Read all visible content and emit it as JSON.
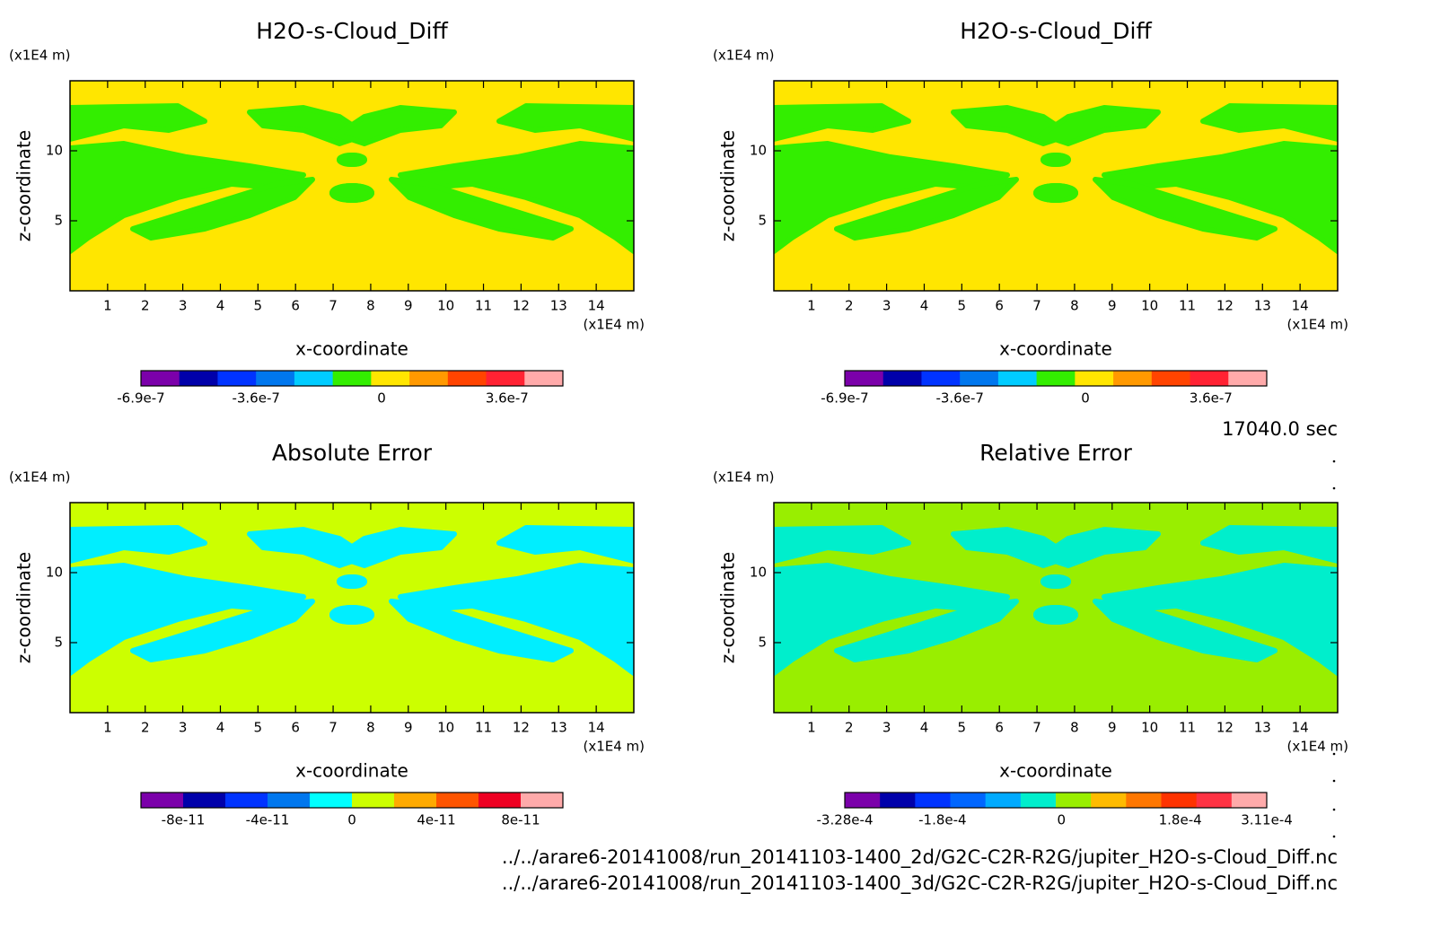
{
  "chart_data": [
    {
      "type": "contour",
      "title": "H2O-s-Cloud_Diff",
      "x_label": "x-coordinate",
      "y_label": "z-coordinate",
      "x_unit": "(x1E4 m)",
      "y_unit": "(x1E4 m)",
      "xlim": [
        0,
        15
      ],
      "ylim": [
        0,
        15
      ],
      "xticks": [
        1,
        2,
        3,
        4,
        5,
        6,
        7,
        8,
        9,
        10,
        11,
        12,
        13,
        14
      ],
      "yticks": [
        5,
        10
      ],
      "field_color": "#ffe600",
      "pattern_color": "#33ee00",
      "colorbar": {
        "clim": [
          -6.9e-07,
          5.2e-07
        ],
        "colors": [
          "#7b00aa",
          "#0000aa",
          "#0033ff",
          "#0077ee",
          "#00ccff",
          "#33ee00",
          "#ffe600",
          "#ff9900",
          "#ff4400",
          "#ff2233",
          "#ffaaaa"
        ],
        "ticks": [
          {
            "value": -6.9e-07,
            "label": "-6.9e-7"
          },
          {
            "value": -3.6e-07,
            "label": "-3.6e-7"
          },
          0,
          {
            "value": 3.6e-07,
            "label": "3.6e-7"
          }
        ]
      }
    },
    {
      "type": "contour",
      "title": "H2O-s-Cloud_Diff",
      "x_label": "x-coordinate",
      "y_label": "z-coordinate",
      "x_unit": "(x1E4 m)",
      "y_unit": "(x1E4 m)",
      "xlim": [
        0,
        15
      ],
      "ylim": [
        0,
        15
      ],
      "xticks": [
        1,
        2,
        3,
        4,
        5,
        6,
        7,
        8,
        9,
        10,
        11,
        12,
        13,
        14
      ],
      "yticks": [
        5,
        10
      ],
      "field_color": "#ffe600",
      "pattern_color": "#33ee00",
      "colorbar": {
        "clim": [
          -6.9e-07,
          5.2e-07
        ],
        "colors": [
          "#7b00aa",
          "#0000aa",
          "#0033ff",
          "#0077ee",
          "#00ccff",
          "#33ee00",
          "#ffe600",
          "#ff9900",
          "#ff4400",
          "#ff2233",
          "#ffaaaa"
        ],
        "ticks": [
          {
            "value": -6.9e-07,
            "label": "-6.9e-7"
          },
          {
            "value": -3.6e-07,
            "label": "-3.6e-7"
          },
          0,
          {
            "value": 3.6e-07,
            "label": "3.6e-7"
          }
        ]
      }
    },
    {
      "type": "contour",
      "title": "Absolute Error",
      "x_label": "x-coordinate",
      "y_label": "z-coordinate",
      "x_unit": "(x1E4 m)",
      "y_unit": "(x1E4 m)",
      "xlim": [
        0,
        15
      ],
      "ylim": [
        0,
        15
      ],
      "xticks": [
        1,
        2,
        3,
        4,
        5,
        6,
        7,
        8,
        9,
        10,
        11,
        12,
        13,
        14
      ],
      "yticks": [
        5,
        10
      ],
      "field_color": "#ccff00",
      "pattern_color": "#00eeff",
      "colorbar": {
        "clim": [
          -1e-10,
          1e-10
        ],
        "colors": [
          "#7b00aa",
          "#0000aa",
          "#0033ff",
          "#0077ee",
          "#00ffff",
          "#ccff00",
          "#ffaa00",
          "#ff5500",
          "#ee0022",
          "#ffaaaa"
        ],
        "ticks": [
          {
            "value": -8e-11,
            "label": "-8e-11"
          },
          {
            "value": -4e-11,
            "label": "-4e-11"
          },
          0,
          {
            "value": 4e-11,
            "label": "4e-11"
          },
          {
            "value": 8e-11,
            "label": "8e-11"
          }
        ]
      }
    },
    {
      "type": "contour",
      "title": "Relative Error",
      "x_label": "x-coordinate",
      "y_label": "z-coordinate",
      "x_unit": "(x1E4 m)",
      "y_unit": "(x1E4 m)",
      "xlim": [
        0,
        15
      ],
      "ylim": [
        0,
        15
      ],
      "xticks": [
        1,
        2,
        3,
        4,
        5,
        6,
        7,
        8,
        9,
        10,
        11,
        12,
        13,
        14
      ],
      "yticks": [
        5,
        10
      ],
      "field_color": "#99ee00",
      "pattern_color": "#00eecc",
      "colorbar": {
        "clim": [
          -0.000328,
          0.000311
        ],
        "colors": [
          "#7b00aa",
          "#0000aa",
          "#0033ff",
          "#0066ff",
          "#00aaff",
          "#00eecc",
          "#99ee00",
          "#ffbb00",
          "#ff7700",
          "#ff3300",
          "#ff3344",
          "#ffaaaa"
        ],
        "ticks": [
          {
            "value": -0.000328,
            "label": "-3.28e-4"
          },
          {
            "value": -0.00018,
            "label": "-1.8e-4"
          },
          0,
          {
            "value": 0.00018,
            "label": "1.8e-4"
          },
          {
            "value": 0.000311,
            "label": "3.11e-4"
          }
        ]
      }
    }
  ],
  "time_label": "17040.0 sec",
  "files": [
    "../../arare6-20141008/run_20141103-1400_2d/G2C-C2R-R2G/jupiter_H2O-s-Cloud_Diff.nc",
    "../../arare6-20141008/run_20141103-1400_3d/G2C-C2R-R2G/jupiter_H2O-s-Cloud_Diff.nc"
  ]
}
